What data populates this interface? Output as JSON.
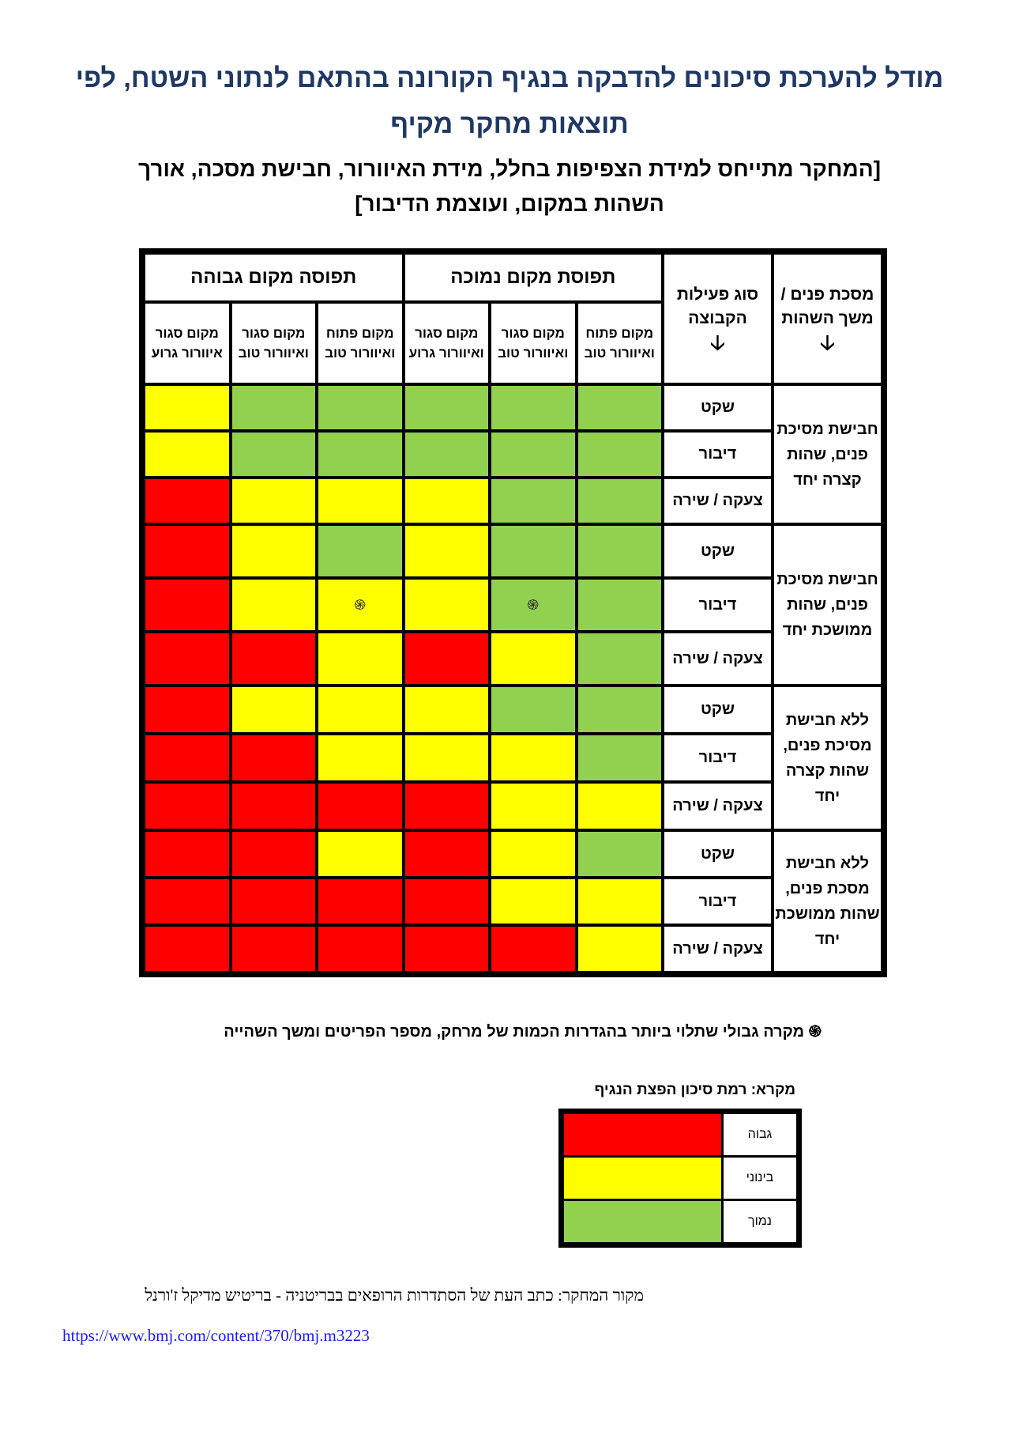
{
  "title": {
    "line1": "מודל להערכת סיכונים להדבקה בנגיף הקורונה בהתאם לנתוני השטח, לפי",
    "line2": "תוצאות מחקר מקיף"
  },
  "subtitle": {
    "line1": "[המחקר מתייחס למידת הצפיפות בחלל, מידת האיוורור, חבישת מסכה, אורך",
    "line2": "השהות במקום, ועוצמת הדיבור]"
  },
  "table": {
    "header_mask": "מסכת פנים / משך השהות",
    "header_activity": "סוג פעילות הקבוצה",
    "arrow": "🡣",
    "occupancy_groups": [
      "תפוסת מקום נמוכה",
      "תפוסה מקום גבוהה"
    ],
    "venue_columns": [
      "מקום פתוח ואיוורור טוב",
      "מקום סגור ואיוורור טוב",
      "מקום סגור איוורור גרוע"
    ],
    "venue_columns_low": [
      "מקום פתוח ואיוורור טוב",
      "מקום סגור ואיוורור טוב",
      "מקום סגור ואיוורור גרוע"
    ],
    "venue_columns_high": [
      "מקום פתוח ואיוורור טוב",
      "מקום סגור ואיוורור טוב",
      "מקום סגור איוורור גרוע"
    ],
    "activities": [
      "שקט",
      "דיבור",
      "צעקה / שירה"
    ],
    "groups": [
      {
        "label": "חבישת מסיכת פנים, שהות קצרה יחד",
        "rows": [
          [
            "low",
            "low",
            "low",
            "low",
            "low",
            "medium"
          ],
          [
            "low",
            "low",
            "low",
            "low",
            "low",
            "medium"
          ],
          [
            "low",
            "low",
            "medium",
            "medium",
            "medium",
            "high"
          ]
        ]
      },
      {
        "label": "חבישת מסיכת פנים, שהות ממושכת יחד",
        "rows": [
          [
            "low",
            "low",
            "medium",
            "low",
            "medium",
            "high"
          ],
          [
            "low",
            "low*",
            "medium",
            "medium*",
            "medium",
            "high"
          ],
          [
            "low",
            "medium",
            "high",
            "medium",
            "high",
            "high"
          ]
        ]
      },
      {
        "label": "ללא חבישת מסיכת פנים, שהות קצרה יחד",
        "rows": [
          [
            "low",
            "low",
            "medium",
            "medium",
            "medium",
            "high"
          ],
          [
            "low",
            "medium",
            "medium",
            "medium",
            "high",
            "high"
          ],
          [
            "medium",
            "medium",
            "high",
            "high",
            "high",
            "high"
          ]
        ]
      },
      {
        "label": "ללא חבישת מסכת פנים, שהות ממושכת יחד",
        "rows": [
          [
            "low",
            "medium",
            "high",
            "medium",
            "high",
            "high"
          ],
          [
            "medium",
            "medium",
            "high",
            "high",
            "high",
            "high"
          ],
          [
            "medium",
            "high",
            "high",
            "high",
            "high",
            "high"
          ]
        ]
      }
    ],
    "marker_icon": "swirl-icon",
    "marker_glyph": "֍"
  },
  "footnote": {
    "icon": "֍",
    "text": "מקרה גבולי שתלוי ביותר בהגדרות הכמות של מרחק, מספר הפריטים ומשך השהייה"
  },
  "legend": {
    "title": "מקרא: רמת סיכון הפצת הנגיף",
    "items": [
      {
        "level": "high",
        "label": "גבוה"
      },
      {
        "level": "medium",
        "label": "בינוני"
      },
      {
        "level": "low",
        "label": "נמוך"
      }
    ]
  },
  "colors": {
    "high": "#ff0000",
    "medium": "#ffff00",
    "low": "#92d050",
    "title": "#1f3864",
    "link": "#1a1aff"
  },
  "source": {
    "text": "מקור המחקר: כתב העת של הסתדרות הרופאים בבריטניה - בריטיש מדיקל ז'ורנל",
    "url": "https://www.bmj.com/content/370/bmj.m3223"
  }
}
